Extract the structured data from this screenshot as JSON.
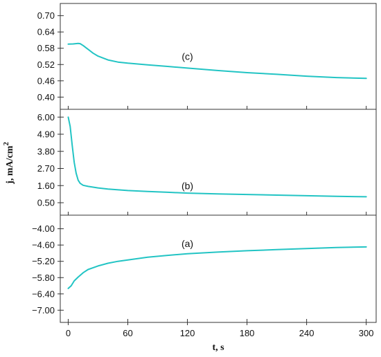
{
  "chart_data": {
    "type": "line",
    "colors": {
      "series": "#22c4c4",
      "frame": "#333333"
    },
    "xlabel": "t, s",
    "ylabel": {
      "main": "j, mA/cm",
      "superscript": "2"
    },
    "xlim": [
      -8,
      310
    ],
    "xticks": [
      "0",
      "60",
      "120",
      "180",
      "240",
      "300"
    ],
    "xtick_values": [
      0,
      60,
      120,
      180,
      240,
      300
    ],
    "panels": [
      {
        "id": "c",
        "label": "(c)",
        "label_at": [
          120,
          0.55
        ],
        "ylim": [
          0.355,
          0.745
        ],
        "yticks": [
          "0.70",
          "0.64",
          "0.58",
          "0.52",
          "0.46",
          "0.40"
        ],
        "ytick_values": [
          0.7,
          0.64,
          0.58,
          0.52,
          0.46,
          0.4
        ],
        "x": [
          0,
          5,
          10,
          12,
          15,
          20,
          25,
          30,
          40,
          50,
          60,
          80,
          100,
          120,
          150,
          180,
          210,
          240,
          270,
          300
        ],
        "y": [
          0.595,
          0.596,
          0.598,
          0.597,
          0.59,
          0.576,
          0.562,
          0.551,
          0.537,
          0.529,
          0.525,
          0.519,
          0.513,
          0.507,
          0.498,
          0.49,
          0.484,
          0.477,
          0.472,
          0.469
        ]
      },
      {
        "id": "b",
        "label": "(b)",
        "label_at": [
          120,
          1.6
        ],
        "ylim": [
          -0.3,
          6.5
        ],
        "yticks": [
          "6.00",
          "4.90",
          "3.80",
          "2.70",
          "1.60",
          "0.50"
        ],
        "ytick_values": [
          6.0,
          4.9,
          3.8,
          2.7,
          1.6,
          0.5
        ],
        "x": [
          0,
          2,
          4,
          6,
          8,
          10,
          12,
          15,
          20,
          30,
          40,
          60,
          80,
          100,
          120,
          150,
          180,
          210,
          240,
          270,
          300
        ],
        "y": [
          6.0,
          5.4,
          4.2,
          3.1,
          2.4,
          1.95,
          1.75,
          1.62,
          1.55,
          1.45,
          1.38,
          1.28,
          1.22,
          1.17,
          1.12,
          1.07,
          1.03,
          0.99,
          0.95,
          0.91,
          0.88
        ]
      },
      {
        "id": "a",
        "label": "(a)",
        "label_at": [
          120,
          -4.55
        ],
        "ylim": [
          -7.45,
          -3.5
        ],
        "yticks": [
          "-4.00",
          "-4.60",
          "-5.20",
          "-5.80",
          "-6.40",
          "-7.00"
        ],
        "ytick_values": [
          -4.0,
          -4.6,
          -5.2,
          -5.8,
          -6.4,
          -7.0
        ],
        "x": [
          0,
          3,
          6,
          10,
          15,
          20,
          30,
          40,
          50,
          60,
          80,
          100,
          120,
          150,
          180,
          210,
          240,
          270,
          300
        ],
        "y": [
          -6.2,
          -6.1,
          -5.92,
          -5.78,
          -5.62,
          -5.5,
          -5.37,
          -5.27,
          -5.2,
          -5.15,
          -5.05,
          -4.98,
          -4.92,
          -4.86,
          -4.81,
          -4.77,
          -4.73,
          -4.69,
          -4.67
        ]
      }
    ]
  }
}
